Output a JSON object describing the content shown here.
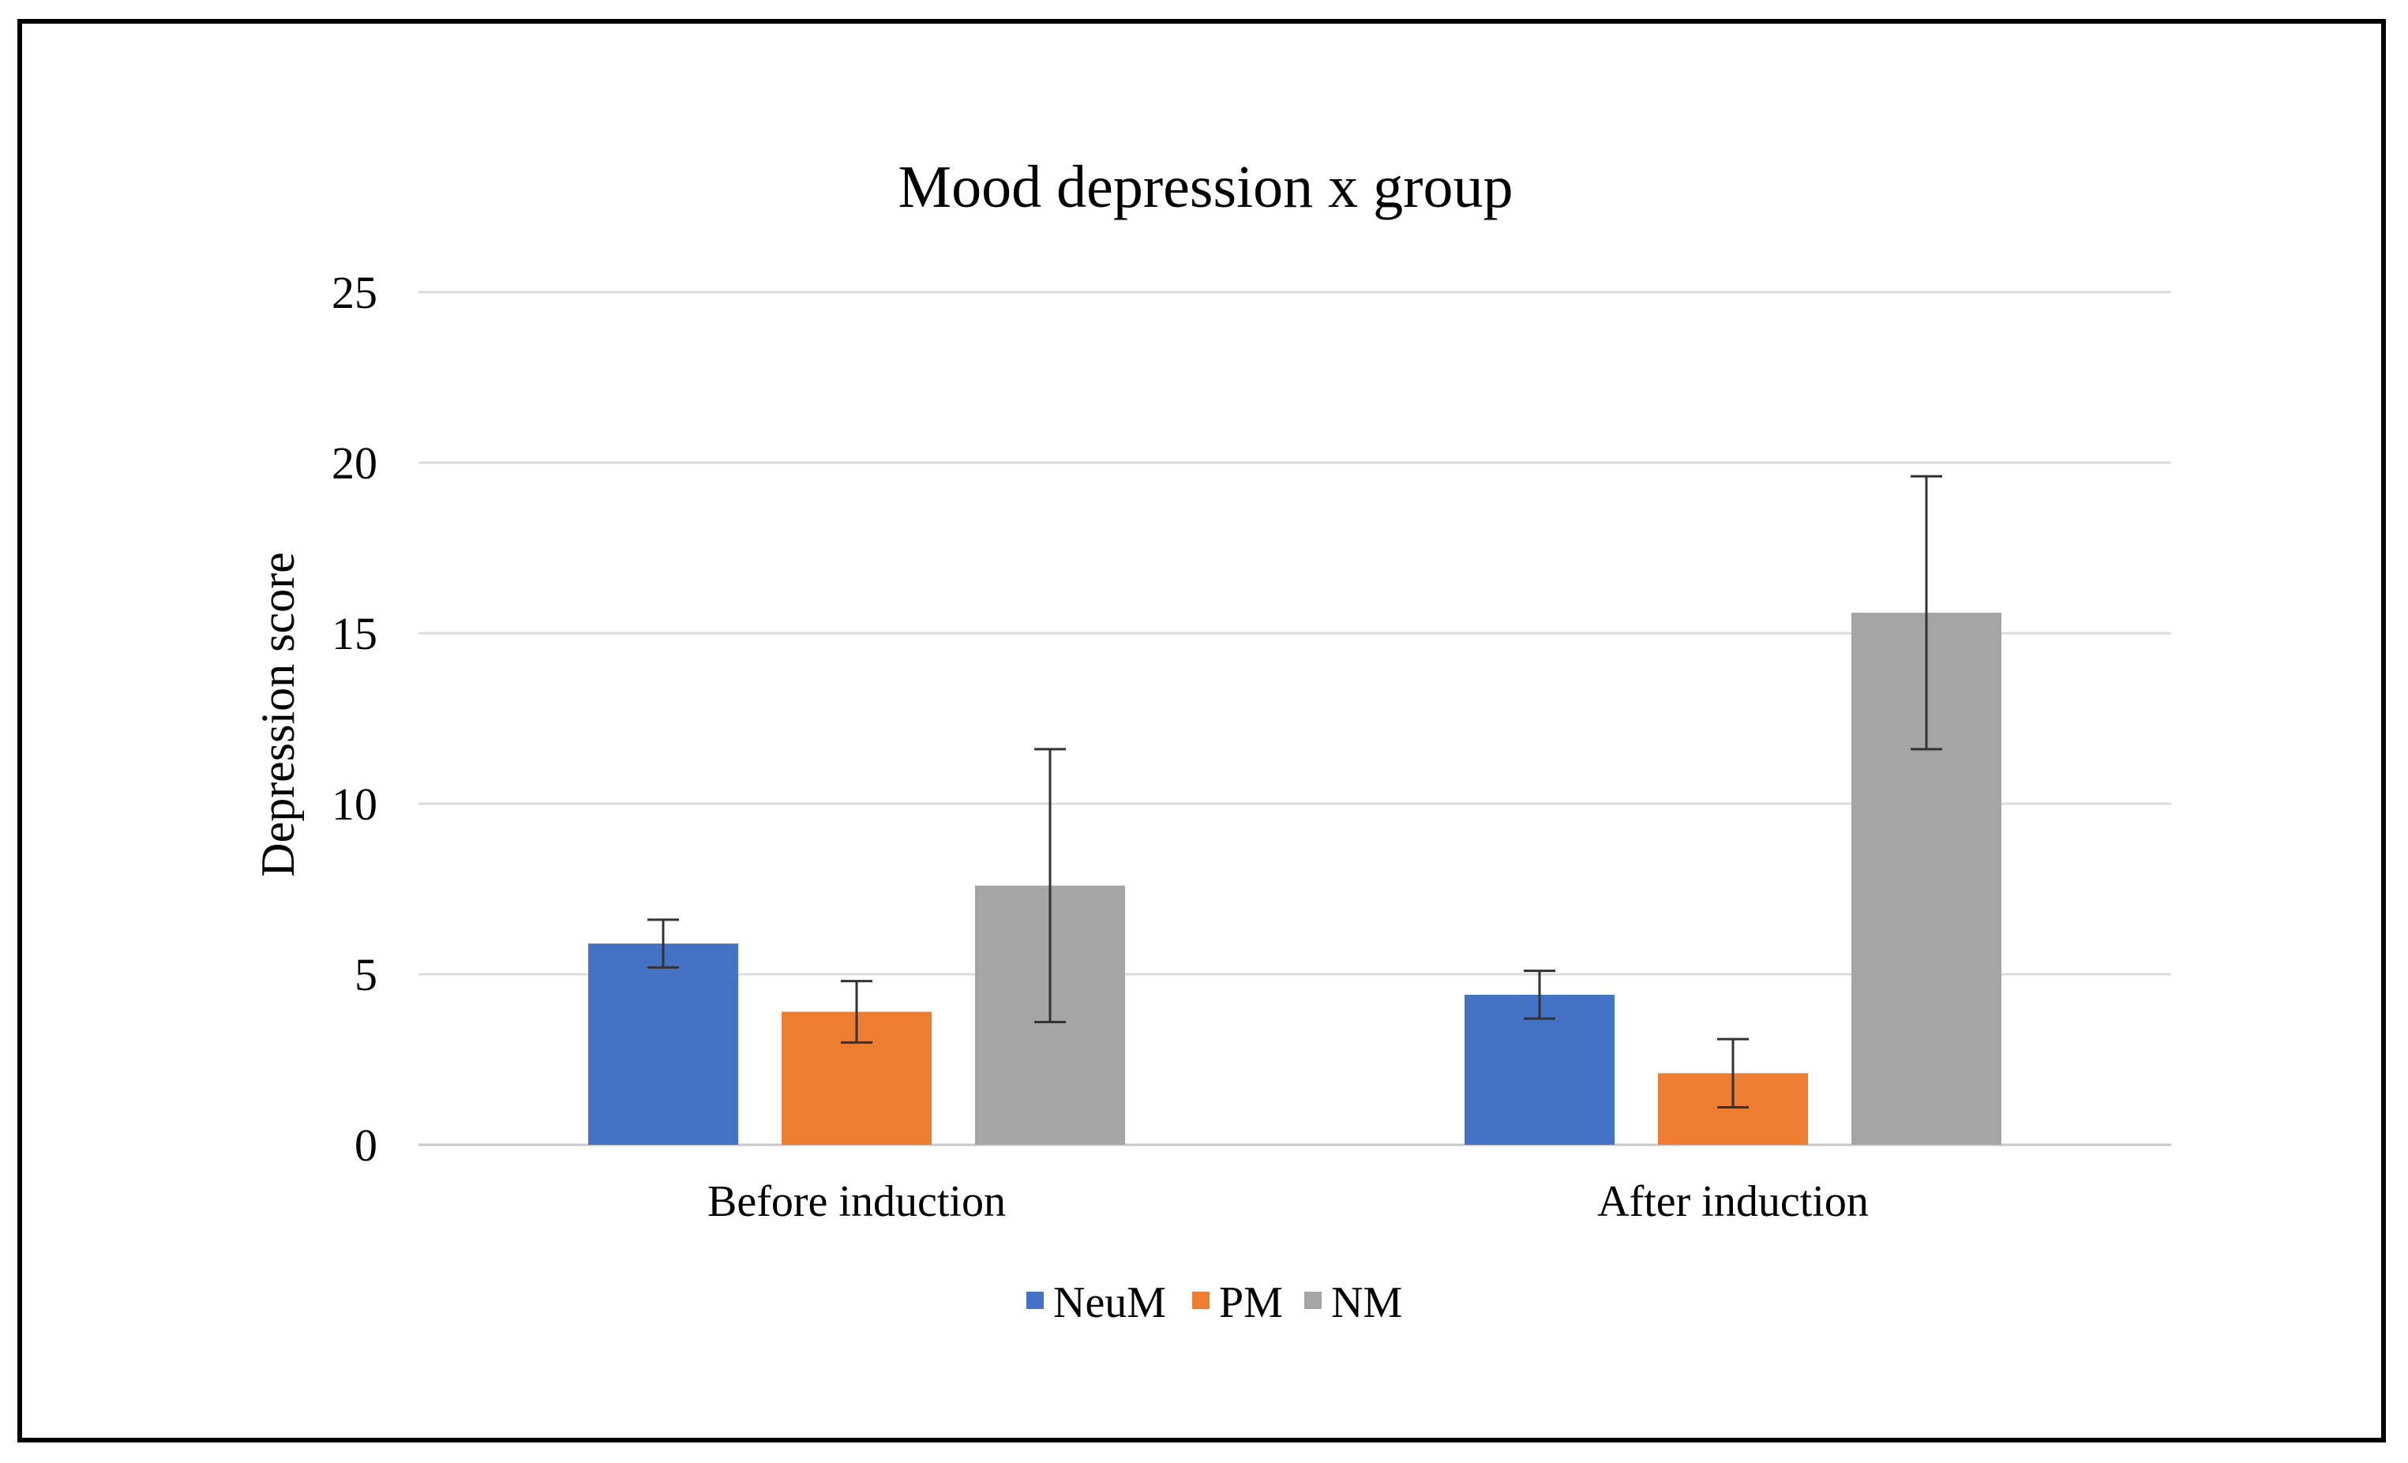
{
  "chart_data": {
    "type": "bar",
    "title": "Mood depression  x group",
    "xlabel": "",
    "ylabel": "Depression score",
    "ylim": [
      0,
      25
    ],
    "yticks": [
      0,
      5,
      10,
      15,
      20,
      25
    ],
    "grid": true,
    "legend_position": "bottom",
    "categories": [
      "Before induction",
      "After induction"
    ],
    "series": [
      {
        "name": "NeuM",
        "color": "#4472C4",
        "values": [
          5.9,
          4.4
        ],
        "errors": [
          0.7,
          0.7
        ]
      },
      {
        "name": "PM",
        "color": "#ED7D31",
        "values": [
          3.9,
          2.1
        ],
        "errors": [
          0.9,
          1.0
        ]
      },
      {
        "name": "NM",
        "color": "#A5A5A5",
        "values": [
          7.6,
          15.6
        ],
        "errors": [
          4.0,
          4.0
        ]
      }
    ]
  }
}
